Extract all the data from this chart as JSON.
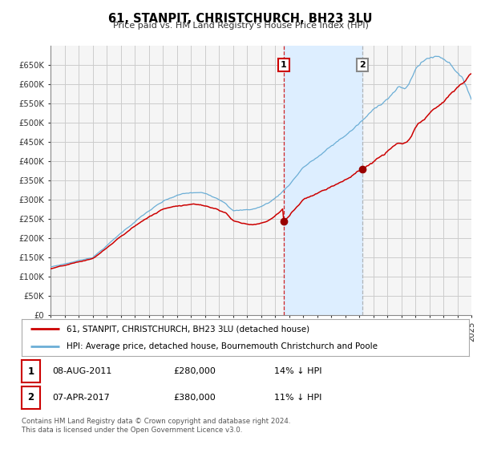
{
  "title": "61, STANPIT, CHRISTCHURCH, BH23 3LU",
  "subtitle": "Price paid vs. HM Land Registry's House Price Index (HPI)",
  "legend_label_red": "61, STANPIT, CHRISTCHURCH, BH23 3LU (detached house)",
  "legend_label_blue": "HPI: Average price, detached house, Bournemouth Christchurch and Poole",
  "footnote1": "Contains HM Land Registry data © Crown copyright and database right 2024.",
  "footnote2": "This data is licensed under the Open Government Licence v3.0.",
  "table_row1": {
    "num": "1",
    "date": "08-AUG-2011",
    "price": "£280,000",
    "info": "14% ↓ HPI"
  },
  "table_row2": {
    "num": "2",
    "date": "07-APR-2017",
    "price": "£380,000",
    "info": "11% ↓ HPI"
  },
  "sale1_year": 2011.6,
  "sale1_price": 280000,
  "sale2_year": 2017.27,
  "sale2_price": 380000,
  "ylim": [
    0,
    700000
  ],
  "yticks": [
    0,
    50000,
    100000,
    150000,
    200000,
    250000,
    300000,
    350000,
    400000,
    450000,
    500000,
    550000,
    600000,
    650000
  ],
  "hpi_color": "#6baed6",
  "price_color": "#cc0000",
  "grid_color": "#cccccc",
  "shade_color": "#ddeeff",
  "background_color": "#ffffff",
  "plot_bg_color": "#f5f5f5"
}
